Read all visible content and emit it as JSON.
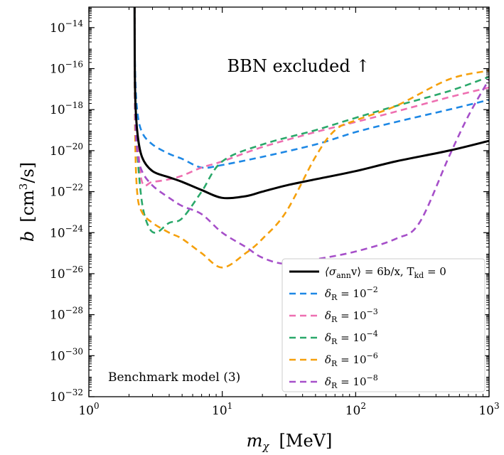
{
  "chart_data": {
    "type": "line",
    "x_scale": "log",
    "y_scale": "log",
    "xlim": [
      1,
      1000
    ],
    "ylim": [
      1e-32,
      1e-13
    ],
    "xlabel": {
      "main": "m",
      "sub": "χ",
      "unit": "[MeV]"
    },
    "ylabel": {
      "main": "b",
      "unit_pre": "[cm",
      "unit_sup": "3",
      "unit_post": "/s]"
    },
    "x_ticks": [
      {
        "value": 1,
        "base": "10",
        "exp": "0"
      },
      {
        "value": 10,
        "base": "10",
        "exp": "1"
      },
      {
        "value": 100,
        "base": "10",
        "exp": "2"
      },
      {
        "value": 1000,
        "base": "10",
        "exp": "3"
      }
    ],
    "y_ticks": [
      {
        "value": 1e-32,
        "base": "10",
        "exp": "−32"
      },
      {
        "value": 1e-30,
        "base": "10",
        "exp": "−30"
      },
      {
        "value": 1e-28,
        "base": "10",
        "exp": "−28"
      },
      {
        "value": 1e-26,
        "base": "10",
        "exp": "−26"
      },
      {
        "value": 1e-24,
        "base": "10",
        "exp": "−24"
      },
      {
        "value": 1e-22,
        "base": "10",
        "exp": "−22"
      },
      {
        "value": 1e-20,
        "base": "10",
        "exp": "−20"
      },
      {
        "value": 1e-18,
        "base": "10",
        "exp": "−18"
      },
      {
        "value": 1e-16,
        "base": "10",
        "exp": "−16"
      },
      {
        "value": 1e-14,
        "base": "10",
        "exp": "−14"
      }
    ],
    "annotations": {
      "excluded": "BBN excluded ↑",
      "benchmark": "Benchmark model (3)"
    },
    "legend_position": "lower-right",
    "series": [
      {
        "name": "⟨σannv⟩ = 6b/x, Tkd = 0",
        "legend": {
          "pre": "⟨σ",
          "sub": "ann",
          "post": "v⟩ = 6b/x, T",
          "sub2": "kd",
          "post2": " = 0"
        },
        "color": "#000000",
        "dash": "solid",
        "points": [
          [
            2.2,
            1e-13
          ],
          [
            2.22,
            1e-17
          ],
          [
            2.3,
            1e-19
          ],
          [
            2.5,
            5e-21
          ],
          [
            3,
            1e-21
          ],
          [
            4,
            5e-22
          ],
          [
            5,
            3e-22
          ],
          [
            7,
            1.2e-22
          ],
          [
            10,
            5e-23
          ],
          [
            15,
            6e-23
          ],
          [
            20,
            1e-22
          ],
          [
            30,
            2e-22
          ],
          [
            50,
            4e-22
          ],
          [
            100,
            1e-21
          ],
          [
            200,
            3e-21
          ],
          [
            500,
            1e-20
          ],
          [
            1000,
            3e-20
          ]
        ]
      },
      {
        "name": "δR = 10−2",
        "legend": {
          "pre": "δ",
          "sub": "R",
          "post": " = 10",
          "sup": "−2"
        },
        "color": "#1e88e5",
        "dash": "dashed",
        "points": [
          [
            2.2,
            1e-13
          ],
          [
            2.22,
            1e-16
          ],
          [
            2.3,
            1e-18
          ],
          [
            2.5,
            8e-20
          ],
          [
            3,
            2e-20
          ],
          [
            4,
            7e-21
          ],
          [
            5,
            4e-21
          ],
          [
            7,
            1.5e-21
          ],
          [
            10,
            2e-21
          ],
          [
            20,
            5e-21
          ],
          [
            50,
            2e-20
          ],
          [
            100,
            8e-20
          ],
          [
            200,
            2.5e-19
          ],
          [
            500,
            1e-18
          ],
          [
            1000,
            3e-18
          ]
        ]
      },
      {
        "name": "δR = 10−3",
        "legend": {
          "pre": "δ",
          "sub": "R",
          "post": " = 10",
          "sup": "−3"
        },
        "color": "#ee6fb1",
        "dash": "dashed",
        "points": [
          [
            2.2,
            1e-13
          ],
          [
            2.22,
            1e-17
          ],
          [
            2.3,
            1e-19
          ],
          [
            2.5,
            3e-22
          ],
          [
            3,
            3e-22
          ],
          [
            4,
            4e-22
          ],
          [
            5,
            6e-22
          ],
          [
            7,
            1.5e-21
          ],
          [
            10,
            3e-21
          ],
          [
            20,
            1.5e-20
          ],
          [
            50,
            8e-20
          ],
          [
            100,
            2.5e-19
          ],
          [
            200,
            8e-19
          ],
          [
            500,
            4e-18
          ],
          [
            1000,
            1.2e-17
          ]
        ]
      },
      {
        "name": "δR = 10−4",
        "legend": {
          "pre": "δ",
          "sub": "R",
          "post": " = 10",
          "sup": "−4"
        },
        "color": "#2aa86a",
        "dash": "dashed",
        "points": [
          [
            2.2,
            1e-13
          ],
          [
            2.22,
            1e-18
          ],
          [
            2.3,
            1e-20
          ],
          [
            2.5,
            3e-23
          ],
          [
            2.8,
            2e-24
          ],
          [
            3.2,
            1e-24
          ],
          [
            4,
            3e-24
          ],
          [
            5,
            5e-24
          ],
          [
            7,
            1e-22
          ],
          [
            10,
            3e-21
          ],
          [
            20,
            2e-20
          ],
          [
            50,
            1e-19
          ],
          [
            100,
            4e-19
          ],
          [
            200,
            1.5e-18
          ],
          [
            500,
            8e-18
          ],
          [
            1000,
            4e-17
          ]
        ]
      },
      {
        "name": "δR = 10−6",
        "legend": {
          "pre": "δ",
          "sub": "R",
          "post": " = 10",
          "sup": "−6"
        },
        "color": "#f5a00c",
        "dash": "dashed",
        "points": [
          [
            2.2,
            1e-13
          ],
          [
            2.22,
            1e-19
          ],
          [
            2.3,
            1e-22
          ],
          [
            2.5,
            1e-23
          ],
          [
            3,
            3e-24
          ],
          [
            4,
            1e-24
          ],
          [
            5,
            5e-25
          ],
          [
            7,
            1e-25
          ],
          [
            10,
            2e-26
          ],
          [
            15,
            1e-25
          ],
          [
            20,
            5e-25
          ],
          [
            30,
            1e-23
          ],
          [
            50,
            5e-21
          ],
          [
            70,
            1e-19
          ],
          [
            100,
            3e-19
          ],
          [
            200,
            1.5e-18
          ],
          [
            500,
            3e-17
          ],
          [
            1000,
            8e-17
          ]
        ]
      },
      {
        "name": "δR = 10−8",
        "legend": {
          "pre": "δ",
          "sub": "R",
          "post": " = 10",
          "sup": "−8"
        },
        "color": "#a64fc9",
        "dash": "dashed",
        "points": [
          [
            2.2,
            1e-13
          ],
          [
            2.22,
            1e-18
          ],
          [
            2.3,
            1e-20
          ],
          [
            2.5,
            1e-21
          ],
          [
            3,
            2e-22
          ],
          [
            4,
            5e-23
          ],
          [
            5,
            2e-23
          ],
          [
            7,
            8e-24
          ],
          [
            10,
            1e-24
          ],
          [
            15,
            2e-25
          ],
          [
            20,
            6e-26
          ],
          [
            30,
            3e-26
          ],
          [
            50,
            5e-26
          ],
          [
            100,
            1.2e-25
          ],
          [
            200,
            5e-25
          ],
          [
            300,
            3e-24
          ],
          [
            500,
            5e-21
          ],
          [
            700,
            5e-19
          ],
          [
            1000,
            3e-17
          ]
        ]
      }
    ]
  }
}
